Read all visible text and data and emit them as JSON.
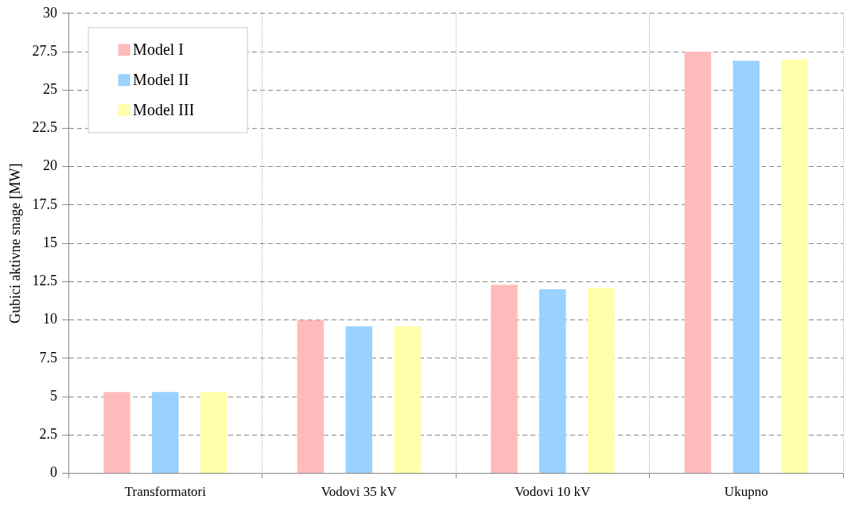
{
  "chart_data": {
    "type": "bar",
    "ylabel": "Gubici aktivne snage [MW]",
    "categories": [
      "Transformatori",
      "Vodovi 35 kV",
      "Vodovi 10 kV",
      "Ukupno"
    ],
    "series": [
      {
        "name": "Model I",
        "color": "#ffbbbb",
        "values": [
          5.3,
          10.0,
          12.3,
          27.5
        ]
      },
      {
        "name": "Model II",
        "color": "#99d1ff",
        "values": [
          5.3,
          9.6,
          12.0,
          26.9
        ]
      },
      {
        "name": "Model III",
        "color": "#ffffaa",
        "values": [
          5.3,
          9.6,
          12.1,
          27.0
        ]
      }
    ],
    "ylim": [
      0,
      30
    ],
    "yticks": [
      0,
      2.5,
      5,
      7.5,
      10,
      12.5,
      15,
      17.5,
      20,
      22.5,
      25,
      27.5,
      30
    ],
    "grid": true,
    "legend": "top left"
  }
}
